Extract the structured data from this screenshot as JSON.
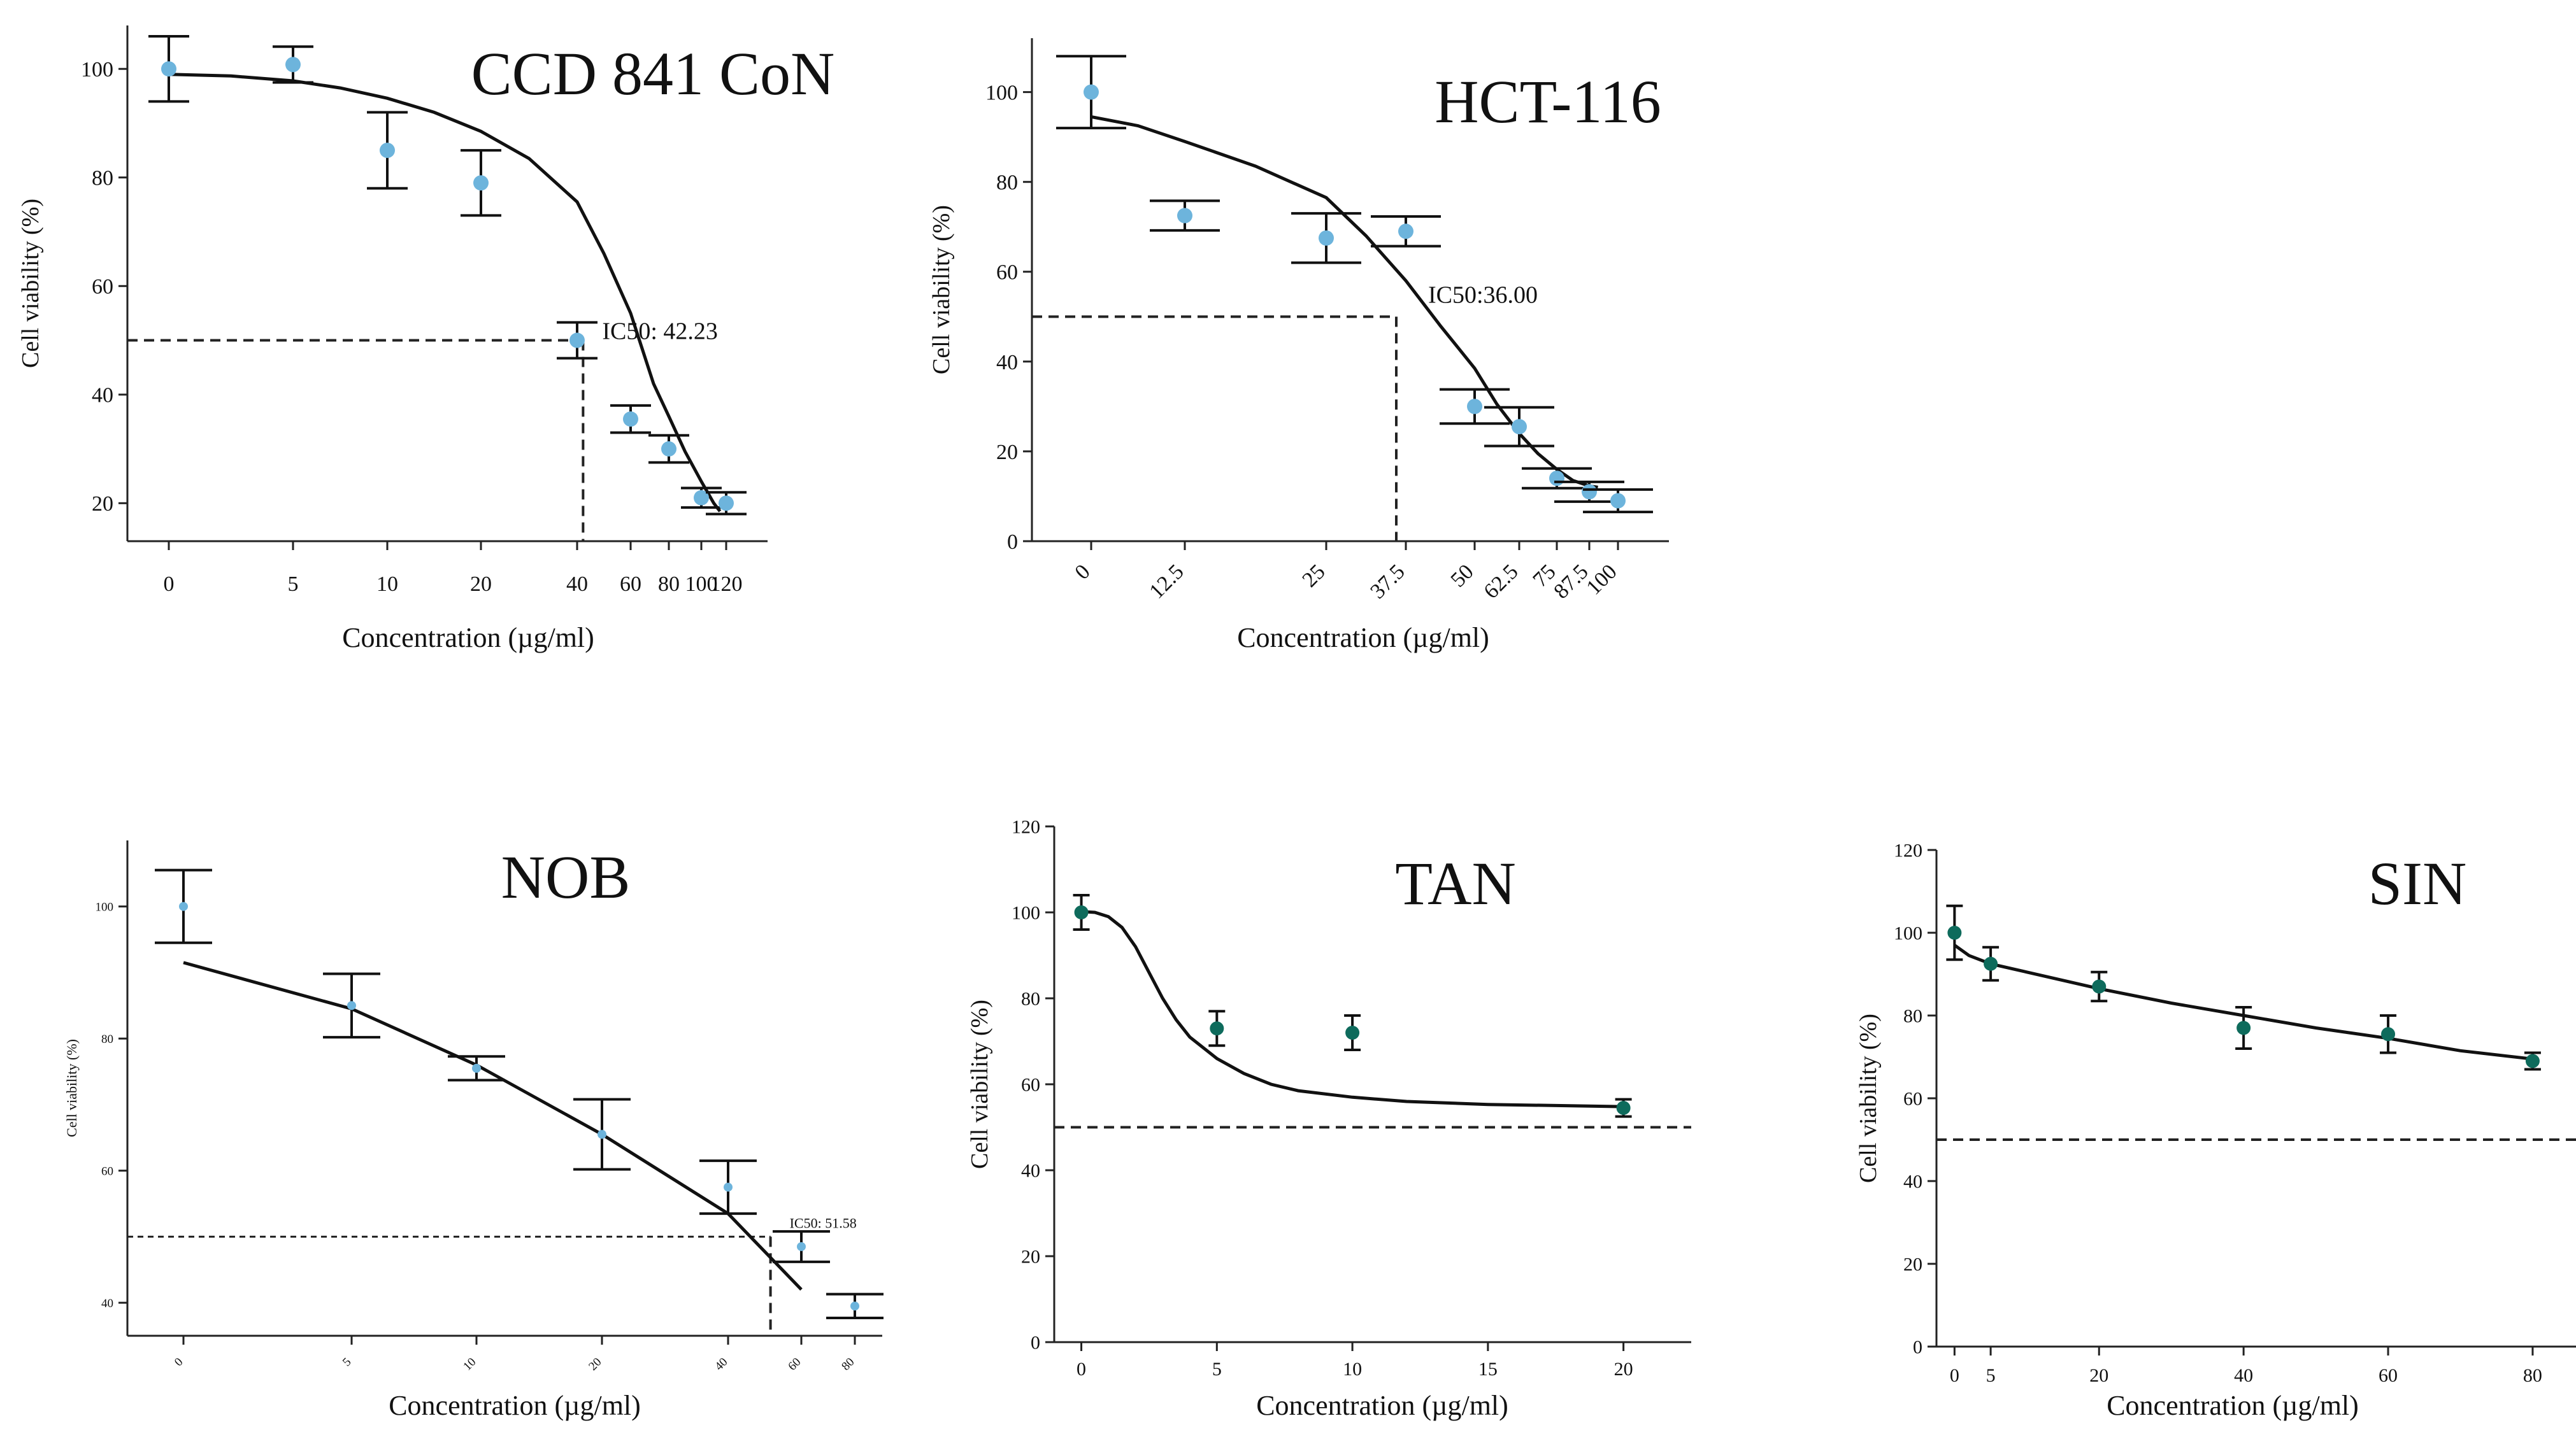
{
  "chart_data": [
    {
      "id": "ccd",
      "type": "scatter",
      "title": "CCD 841 CoN",
      "xlabel": "Concentration (µg/ml)",
      "ylabel": "Cell viability (%)",
      "yticks": [
        20,
        40,
        60,
        80,
        100
      ],
      "xtick_labels": [
        "0",
        "5",
        "10",
        "20",
        "40",
        "60",
        "80",
        "100",
        "120"
      ],
      "x_rotated": false,
      "ic50_label": "IC50: 42.23",
      "ic50_x": 42.23,
      "threshold": 50,
      "points": [
        {
          "x": "0",
          "y": 100,
          "err": 6
        },
        {
          "x": "5",
          "y": 100.8,
          "err": 3.3
        },
        {
          "x": "10",
          "y": 85,
          "err": 7
        },
        {
          "x": "20",
          "y": 79,
          "err": 6
        },
        {
          "x": "40",
          "y": 50,
          "err": 3.3
        },
        {
          "x": "60",
          "y": 35.5,
          "err": 2.5
        },
        {
          "x": "80",
          "y": 30,
          "err": 2.5
        },
        {
          "x": "100",
          "y": 21,
          "err": 1.8
        },
        {
          "x": "120",
          "y": 20,
          "err": 2
        }
      ],
      "fit": [
        [
          -0.0,
          99
        ],
        [
          0.5,
          98.7
        ],
        [
          1.0,
          97.8
        ],
        [
          1.5,
          96.5
        ],
        [
          2.0,
          94.6
        ],
        [
          2.5,
          92
        ],
        [
          3.0,
          88.5
        ],
        [
          3.5,
          83.5
        ],
        [
          4.0,
          75.5
        ],
        [
          4.5,
          66
        ],
        [
          5.0,
          55
        ],
        [
          5.3,
          48.5
        ],
        [
          5.6,
          42
        ],
        [
          6.0,
          36
        ],
        [
          6.5,
          29.5
        ],
        [
          7.0,
          24
        ],
        [
          7.5,
          20
        ],
        [
          7.75,
          18.5
        ]
      ]
    },
    {
      "id": "hct",
      "type": "scatter",
      "title": "HCT-116",
      "xlabel": "Concentration (µg/ml)",
      "ylabel": "Cell viability (%)",
      "yticks": [
        0,
        20,
        40,
        60,
        80,
        100
      ],
      "xtick_labels": [
        "0",
        "12.5",
        "25",
        "37.5",
        "50",
        "62.5",
        "75",
        "87.5",
        "100"
      ],
      "x_rotated": true,
      "ic50_label": "IC50:36.00",
      "ic50_x": 36.0,
      "threshold": 50,
      "points": [
        {
          "x": "0",
          "y": 100,
          "err": 8
        },
        {
          "x": "12.5",
          "y": 72.5,
          "err": 3.3
        },
        {
          "x": "25",
          "y": 67.5,
          "err": 5.5
        },
        {
          "x": "37.5",
          "y": 69,
          "err": 3.3
        },
        {
          "x": "50",
          "y": 30,
          "err": 3.8
        },
        {
          "x": "62.5",
          "y": 25.5,
          "err": 4.3
        },
        {
          "x": "75",
          "y": 14,
          "err": 2.2
        },
        {
          "x": "87.5",
          "y": 11,
          "err": 2.2
        },
        {
          "x": "100",
          "y": 9,
          "err": 2.5
        }
      ],
      "fit": [
        [
          0,
          94.5
        ],
        [
          0.5,
          92.5
        ],
        [
          1.0,
          89
        ],
        [
          1.5,
          83.5
        ],
        [
          2.0,
          76.5
        ],
        [
          2.5,
          68
        ],
        [
          3.0,
          58
        ],
        [
          3.5,
          48
        ],
        [
          4.0,
          38.5
        ],
        [
          4.5,
          30.5
        ],
        [
          5.0,
          24
        ],
        [
          5.5,
          19.5
        ],
        [
          6.0,
          16
        ],
        [
          6.5,
          13.5
        ],
        [
          7.0,
          12.3
        ],
        [
          7.3,
          12
        ]
      ]
    },
    {
      "id": "nob",
      "type": "scatter",
      "title": "NOB",
      "xlabel": "Concentration (µg/ml)",
      "ylabel": "Cell viability (%)",
      "yticks": [
        40,
        60,
        80,
        100
      ],
      "xtick_labels": [
        "0",
        "5",
        "10",
        "20",
        "40",
        "60",
        "80"
      ],
      "x_rotated": true,
      "ic50_label": "IC50: 51.58",
      "ic50_x": 51.58,
      "threshold": 50,
      "points": [
        {
          "x": "0",
          "y": 100,
          "err": 5.5
        },
        {
          "x": "5",
          "y": 85,
          "err": 4.8
        },
        {
          "x": "10",
          "y": 75.5,
          "err": 1.8
        },
        {
          "x": "20",
          "y": 65.5,
          "err": 5.3
        },
        {
          "x": "40",
          "y": 57.5,
          "err": 4
        },
        {
          "x": "60",
          "y": 48.5,
          "err": 2.3
        },
        {
          "x": "80",
          "y": 39.5,
          "err": 1.8
        }
      ],
      "fit": [
        [
          0,
          91.5
        ],
        [
          1.0,
          84.5
        ],
        [
          2.0,
          76
        ],
        [
          3.0,
          65.5
        ],
        [
          4.0,
          53.5
        ],
        [
          5.0,
          42
        ]
      ]
    },
    {
      "id": "tan",
      "type": "scatter",
      "title": "TAN",
      "xlabel": "Concentration (µg/ml)",
      "ylabel": "Cell viability (%)",
      "yticks": [
        0,
        20,
        40,
        60,
        80,
        100,
        120
      ],
      "xticks": [
        0,
        5,
        10,
        15,
        20
      ],
      "threshold": 50,
      "points": [
        {
          "x": 0,
          "y": 100,
          "err": 4
        },
        {
          "x": 5,
          "y": 73,
          "err": 4
        },
        {
          "x": 10,
          "y": 72,
          "err": 4
        },
        {
          "x": 20,
          "y": 54.5,
          "err": 2
        }
      ],
      "fit": [
        [
          0,
          100.2
        ],
        [
          0.5,
          100
        ],
        [
          1.0,
          99
        ],
        [
          1.5,
          96.5
        ],
        [
          2.0,
          92
        ],
        [
          2.5,
          86
        ],
        [
          3.0,
          80
        ],
        [
          3.5,
          75
        ],
        [
          4.0,
          71
        ],
        [
          5.0,
          66
        ],
        [
          6.0,
          62.5
        ],
        [
          7.0,
          60
        ],
        [
          8.0,
          58.5
        ],
        [
          10.0,
          57
        ],
        [
          12.0,
          56
        ],
        [
          15.0,
          55.3
        ],
        [
          20.0,
          54.8
        ]
      ]
    },
    {
      "id": "sin",
      "type": "scatter",
      "title": "SIN",
      "xlabel": "Concentration (µg/ml)",
      "ylabel": "Cell viability (%)",
      "yticks": [
        0,
        20,
        40,
        60,
        80,
        100,
        120
      ],
      "xtick_labels": [
        "0",
        "5",
        "20",
        "40",
        "60",
        "80"
      ],
      "xtick_values": [
        0,
        5,
        20,
        40,
        60,
        80
      ],
      "threshold": 50,
      "points": [
        {
          "x": 0,
          "y": 100,
          "err": 6.5
        },
        {
          "x": 5,
          "y": 92.5,
          "err": 4
        },
        {
          "x": 20,
          "y": 87,
          "err": 3.5
        },
        {
          "x": 40,
          "y": 77,
          "err": 5
        },
        {
          "x": 60,
          "y": 75.5,
          "err": 4.5
        },
        {
          "x": 80,
          "y": 69,
          "err": 2
        }
      ],
      "fit": [
        [
          0,
          97
        ],
        [
          2,
          94.5
        ],
        [
          5,
          92.5
        ],
        [
          10,
          90.5
        ],
        [
          20,
          86.5
        ],
        [
          30,
          83
        ],
        [
          40,
          80
        ],
        [
          50,
          77
        ],
        [
          60,
          74.5
        ],
        [
          70,
          71.5
        ],
        [
          80,
          69.5
        ]
      ]
    }
  ]
}
